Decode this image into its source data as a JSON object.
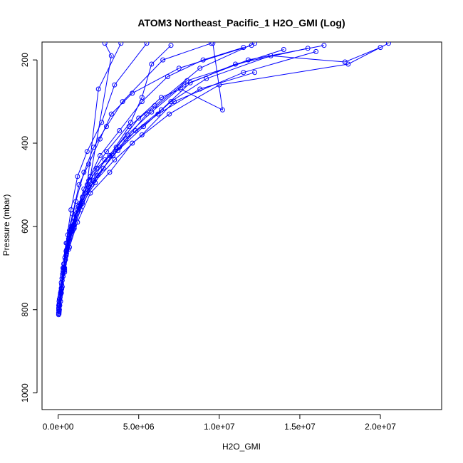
{
  "chart_data": {
    "type": "line",
    "title": "ATOM3 Northeast_Pacific_1 H2O_GMI (Log)",
    "xlabel": "H2O_GMI",
    "ylabel": "Pressure (mbar)",
    "xlim": [
      -1000000,
      23800000
    ],
    "ylim": [
      1040,
      157
    ],
    "y_inverted": true,
    "grid": false,
    "legend": "none",
    "colors": {
      "series": "#0000ff",
      "axis": "#000000",
      "background": "#ffffff"
    },
    "x_ticks": [
      {
        "value": 0,
        "label": "0.0e+00"
      },
      {
        "value": 5000000,
        "label": "5.0e+06"
      },
      {
        "value": 10000000,
        "label": "1.0e+07"
      },
      {
        "value": 15000000,
        "label": "1.5e+07"
      },
      {
        "value": 20000000,
        "label": "2.0e+07"
      }
    ],
    "y_ticks": [
      {
        "value": 200,
        "label": "200"
      },
      {
        "value": 400,
        "label": "400"
      },
      {
        "value": 600,
        "label": "600"
      },
      {
        "value": 800,
        "label": "800"
      },
      {
        "value": 1000,
        "label": "1000"
      }
    ],
    "series": [
      {
        "points": [
          [
            50000,
            810
          ],
          [
            100000,
            790
          ],
          [
            200000,
            750
          ],
          [
            350000,
            690
          ],
          [
            500000,
            640
          ],
          [
            800000,
            560
          ],
          [
            1200000,
            480
          ],
          [
            1800000,
            420
          ],
          [
            2700000,
            350
          ],
          [
            3500000,
            260
          ],
          [
            5500000,
            160
          ]
        ]
      },
      {
        "points": [
          [
            80000,
            800
          ],
          [
            150000,
            780
          ],
          [
            300000,
            720
          ],
          [
            500000,
            660
          ],
          [
            700000,
            610
          ],
          [
            1100000,
            540
          ],
          [
            1600000,
            470
          ],
          [
            2200000,
            410
          ],
          [
            3000000,
            360
          ],
          [
            4000000,
            300
          ],
          [
            6500000,
            200
          ],
          [
            9500000,
            160
          ]
        ]
      },
      {
        "points": [
          [
            60000,
            805
          ],
          [
            200000,
            760
          ],
          [
            400000,
            700
          ],
          [
            600000,
            620
          ],
          [
            900000,
            570
          ],
          [
            1300000,
            500
          ],
          [
            1900000,
            450
          ],
          [
            2600000,
            390
          ],
          [
            3300000,
            330
          ],
          [
            4600000,
            280
          ],
          [
            7500000,
            220
          ],
          [
            12000000,
            165
          ]
        ]
      },
      {
        "points": [
          [
            40000,
            790
          ],
          [
            120000,
            770
          ],
          [
            250000,
            730
          ],
          [
            450000,
            680
          ],
          [
            650000,
            630
          ],
          [
            1000000,
            600
          ],
          [
            1500000,
            530
          ],
          [
            2400000,
            460
          ],
          [
            3800000,
            410
          ],
          [
            5500000,
            330
          ],
          [
            8000000,
            250
          ],
          [
            14000000,
            175
          ]
        ]
      },
      {
        "points": [
          [
            30000,
            808
          ],
          [
            100000,
            775
          ],
          [
            220000,
            740
          ],
          [
            400000,
            710
          ],
          [
            700000,
            650
          ],
          [
            1200000,
            590
          ],
          [
            2000000,
            520
          ],
          [
            3200000,
            470
          ],
          [
            4600000,
            400
          ],
          [
            6900000,
            330
          ],
          [
            10000000,
            260
          ],
          [
            18000000,
            210
          ],
          [
            20500000,
            160
          ]
        ]
      },
      {
        "points": [
          [
            50000,
            795
          ],
          [
            180000,
            760
          ],
          [
            300000,
            700
          ],
          [
            500000,
            670
          ],
          [
            900000,
            610
          ],
          [
            1400000,
            560
          ],
          [
            2100000,
            500
          ],
          [
            3500000,
            440
          ],
          [
            5200000,
            380
          ],
          [
            7200000,
            300
          ],
          [
            11500000,
            230
          ],
          [
            16000000,
            180
          ]
        ]
      },
      {
        "points": [
          [
            70000,
            785
          ],
          [
            250000,
            745
          ],
          [
            380000,
            690
          ],
          [
            600000,
            645
          ],
          [
            1000000,
            580
          ],
          [
            1700000,
            520
          ],
          [
            2800000,
            460
          ],
          [
            4200000,
            390
          ],
          [
            6200000,
            330
          ],
          [
            8800000,
            270
          ],
          [
            12200000,
            230
          ]
        ]
      },
      {
        "points": [
          [
            40000,
            802
          ],
          [
            140000,
            765
          ],
          [
            270000,
            715
          ],
          [
            500000,
            660
          ],
          [
            800000,
            600
          ],
          [
            1300000,
            550
          ],
          [
            2000000,
            480
          ],
          [
            3000000,
            420
          ],
          [
            4500000,
            350
          ],
          [
            5200000,
            290
          ],
          [
            5800000,
            210
          ],
          [
            7000000,
            165
          ]
        ]
      },
      {
        "points": [
          [
            60000,
            780
          ],
          [
            200000,
            735
          ],
          [
            350000,
            700
          ],
          [
            550000,
            640
          ],
          [
            900000,
            590
          ],
          [
            1600000,
            510
          ],
          [
            2600000,
            430
          ],
          [
            3800000,
            370
          ],
          [
            5200000,
            300
          ],
          [
            6800000,
            240
          ],
          [
            9000000,
            200
          ],
          [
            11500000,
            170
          ]
        ]
      },
      {
        "points": [
          [
            30000,
            812
          ],
          [
            120000,
            770
          ],
          [
            240000,
            725
          ],
          [
            420000,
            675
          ],
          [
            700000,
            620
          ],
          [
            1100000,
            570
          ],
          [
            1900000,
            490
          ],
          [
            3200000,
            430
          ],
          [
            4400000,
            360
          ],
          [
            6000000,
            310
          ],
          [
            8800000,
            220
          ],
          [
            12200000,
            160
          ]
        ]
      },
      {
        "points": [
          [
            80000,
            775
          ],
          [
            220000,
            750
          ],
          [
            400000,
            705
          ],
          [
            650000,
            655
          ],
          [
            1000000,
            605
          ],
          [
            1500000,
            545
          ],
          [
            2300000,
            495
          ],
          [
            3600000,
            410
          ],
          [
            5000000,
            340
          ],
          [
            6400000,
            290
          ],
          [
            7600000,
            270
          ],
          [
            10200000,
            320
          ],
          [
            9600000,
            160
          ]
        ]
      },
      {
        "points": [
          [
            50000,
            790
          ],
          [
            150000,
            760
          ],
          [
            300000,
            720
          ],
          [
            480000,
            670
          ],
          [
            750000,
            615
          ],
          [
            1200000,
            560
          ],
          [
            1900000,
            505
          ],
          [
            2900000,
            440
          ],
          [
            4300000,
            380
          ],
          [
            5800000,
            325
          ],
          [
            7800000,
            260
          ],
          [
            11800000,
            200
          ],
          [
            16500000,
            165
          ]
        ]
      },
      {
        "points": [
          [
            40000,
            798
          ],
          [
            160000,
            762
          ],
          [
            320000,
            712
          ],
          [
            520000,
            665
          ],
          [
            850000,
            612
          ],
          [
            1400000,
            548
          ],
          [
            2200000,
            490
          ],
          [
            3400000,
            430
          ],
          [
            4800000,
            370
          ],
          [
            6400000,
            320
          ],
          [
            8200000,
            255
          ],
          [
            11000000,
            210
          ],
          [
            15500000,
            172
          ]
        ]
      },
      {
        "points": [
          [
            60000,
            788
          ],
          [
            200000,
            748
          ],
          [
            360000,
            698
          ],
          [
            580000,
            650
          ],
          [
            950000,
            598
          ],
          [
            1500000,
            540
          ],
          [
            2400000,
            478
          ],
          [
            3700000,
            418
          ],
          [
            5300000,
            360
          ],
          [
            7000000,
            300
          ],
          [
            9200000,
            245
          ],
          [
            13200000,
            190
          ],
          [
            17800000,
            205
          ],
          [
            20000000,
            170
          ]
        ]
      },
      {
        "points": [
          [
            50000,
            805
          ],
          [
            180000,
            755
          ],
          [
            330000,
            705
          ],
          [
            540000,
            655
          ],
          [
            880000,
            603
          ],
          [
            1350000,
            545
          ],
          [
            2000000,
            480
          ],
          [
            3300000,
            190
          ],
          [
            2900000,
            160
          ]
        ]
      },
      {
        "points": [
          [
            45000,
            795
          ],
          [
            170000,
            758
          ],
          [
            310000,
            708
          ],
          [
            510000,
            658
          ],
          [
            820000,
            608
          ],
          [
            1250000,
            553
          ],
          [
            1800000,
            500
          ],
          [
            2500000,
            270
          ],
          [
            3900000,
            160
          ]
        ]
      }
    ]
  }
}
